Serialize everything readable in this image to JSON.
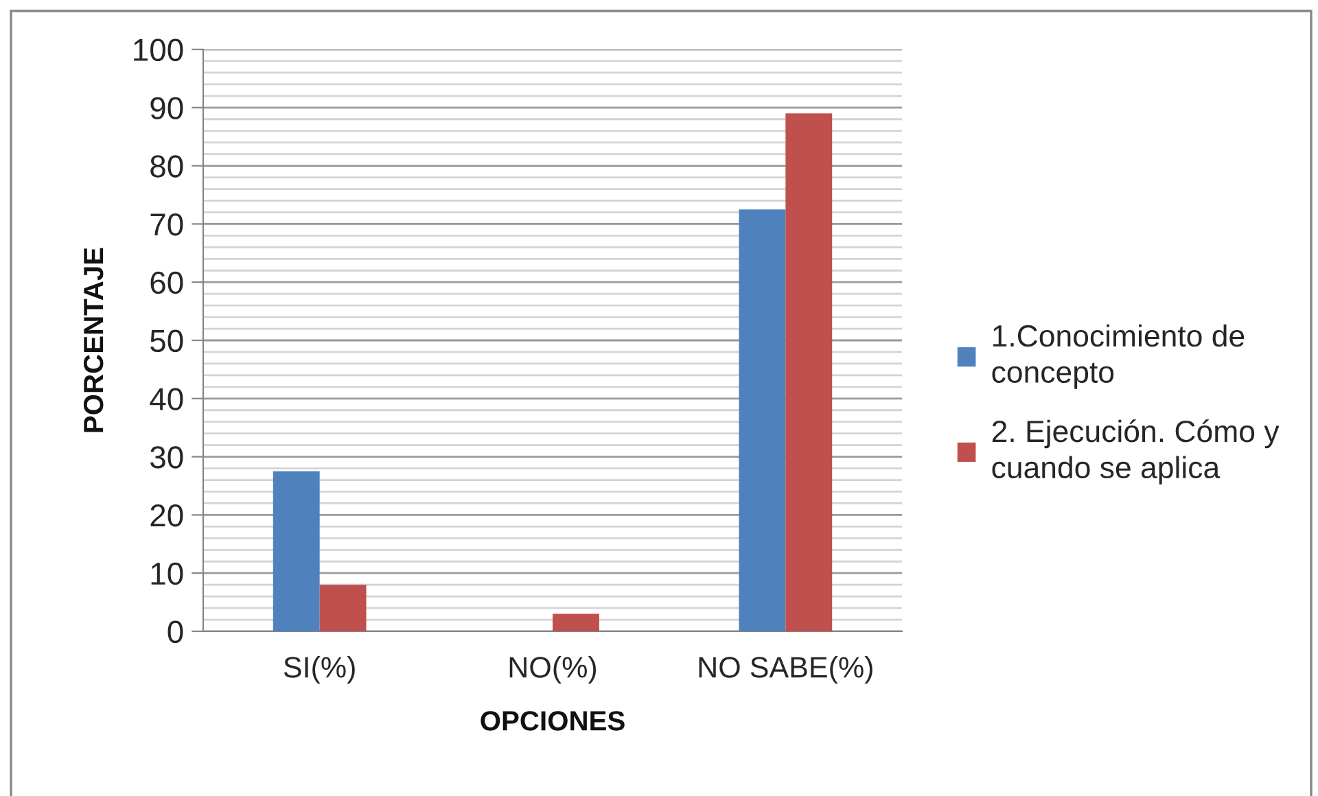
{
  "chart_data": {
    "type": "bar",
    "xlabel": "OPCIONES",
    "ylabel": "PORCENTAJE",
    "categories": [
      "SI(%)",
      "NO(%)",
      "NO SABE(%)"
    ],
    "series": [
      {
        "name": "1.Conocimiento de concepto",
        "color": "#4f81bd",
        "values": [
          27.5,
          0,
          72.5
        ]
      },
      {
        "name": "2. Ejecución. Cómo y cuando se aplica",
        "color": "#c0504d",
        "values": [
          8,
          3,
          89
        ]
      }
    ],
    "ylim": [
      0,
      100
    ],
    "yticks": [
      0,
      {
        "value": 2,
        "label": null
      },
      {
        "value": 4,
        "label": null
      },
      {
        "value": 6,
        "label": null
      },
      {
        "value": 8,
        "label": null
      },
      10,
      {
        "value": 12,
        "label": null
      },
      {
        "value": 14,
        "label": null
      },
      {
        "value": 16,
        "label": null
      },
      {
        "value": 18,
        "label": null
      },
      20,
      {
        "value": 22,
        "label": null
      },
      {
        "value": 24,
        "label": null
      },
      {
        "value": 26,
        "label": null
      },
      {
        "value": 28,
        "label": null
      },
      30,
      {
        "value": 32,
        "label": null
      },
      {
        "value": 34,
        "label": null
      },
      {
        "value": 36,
        "label": null
      },
      {
        "value": 38,
        "label": null
      },
      40,
      {
        "value": 42,
        "label": null
      },
      {
        "value": 44,
        "label": null
      },
      {
        "value": 46,
        "label": null
      },
      {
        "value": 48,
        "label": null
      },
      50,
      {
        "value": 52,
        "label": null
      },
      {
        "value": 54,
        "label": null
      },
      {
        "value": 56,
        "label": null
      },
      {
        "value": 58,
        "label": null
      },
      60,
      {
        "value": 62,
        "label": null
      },
      {
        "value": 64,
        "label": null
      },
      {
        "value": 66,
        "label": null
      },
      {
        "value": 68,
        "label": null
      },
      70,
      {
        "value": 72,
        "label": null
      },
      {
        "value": 74,
        "label": null
      },
      {
        "value": 76,
        "label": null
      },
      {
        "value": 78,
        "label": null
      },
      80,
      {
        "value": 82,
        "label": null
      },
      {
        "value": 84,
        "label": null
      },
      {
        "value": 86,
        "label": null
      },
      {
        "value": 88,
        "label": null
      },
      90,
      {
        "value": 92,
        "label": null
      },
      {
        "value": 94,
        "label": null
      },
      {
        "value": 96,
        "label": null
      },
      {
        "value": 98,
        "label": null
      },
      100
    ],
    "grid": "y",
    "legend": "right"
  }
}
